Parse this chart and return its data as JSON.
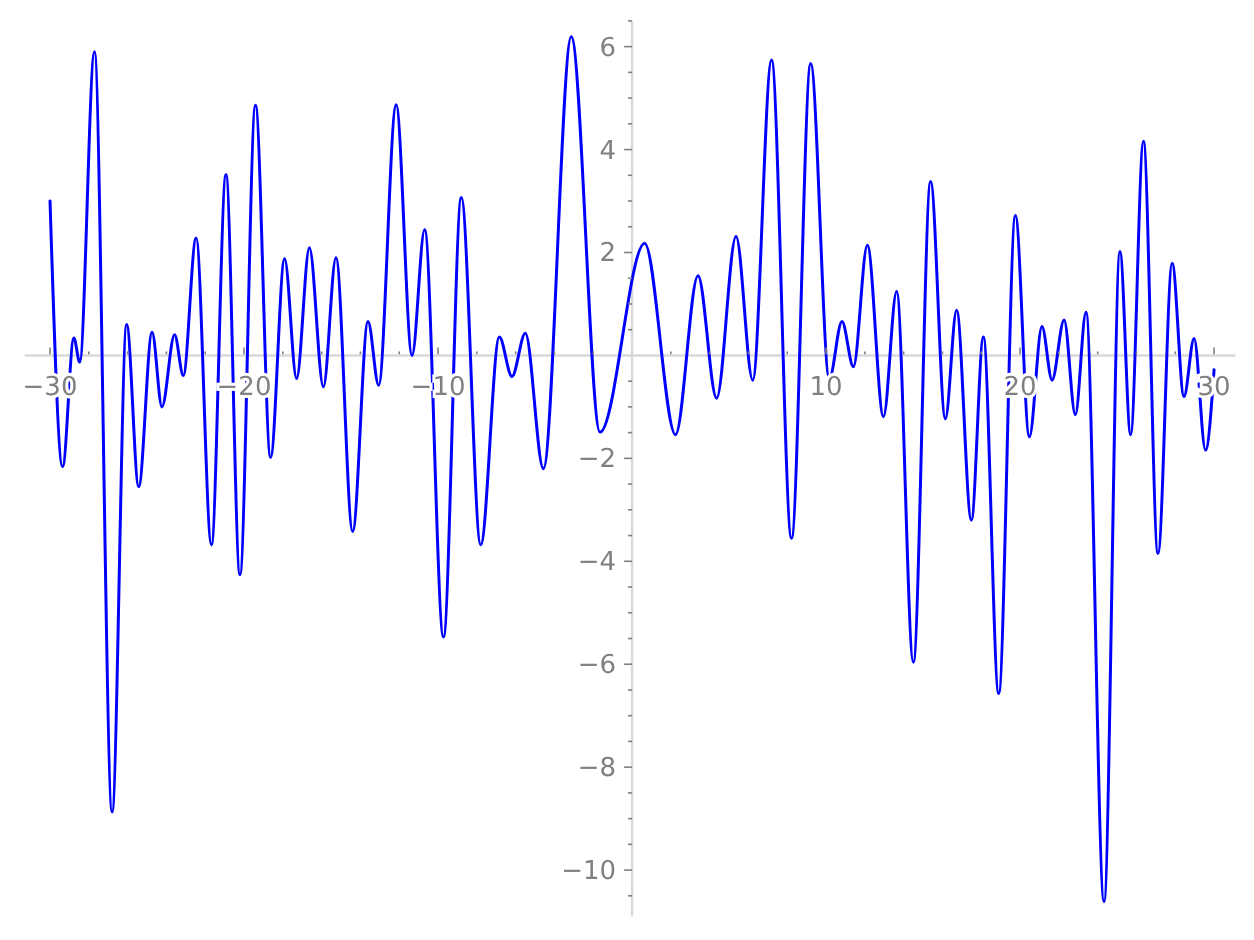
{
  "chart_data": {
    "type": "line",
    "color": "#0000ff",
    "xlim": [
      -31.3,
      31.1
    ],
    "ylim": [
      -10.9,
      6.5
    ],
    "x": [
      -30,
      -29.35,
      -28.77,
      -28.47,
      -27.71,
      -26.8,
      -26.05,
      -25.43,
      -24.74,
      -24.23,
      -23.58,
      -23.13,
      -22.47,
      -21.68,
      -20.93,
      -20.21,
      -19.41,
      -18.63,
      -17.91,
      -17.29,
      -16.63,
      -15.91,
      -15.26,
      -14.4,
      -13.61,
      -13.06,
      -12.16,
      -11.34,
      -10.69,
      -9.72,
      -8.8,
      -7.8,
      -6.84,
      -6.19,
      -5.5,
      -4.57,
      -3.13,
      -1.65,
      0.65,
      2.24,
      3.4,
      4.36,
      5.36,
      6.22,
      7.19,
      8.22,
      9.21,
      10.17,
      10.82,
      11.41,
      12.13,
      12.96,
      13.64,
      14.5,
      15.39,
      16.15,
      16.73,
      17.49,
      18.11,
      18.9,
      19.76,
      20.48,
      21.13,
      21.65,
      22.27,
      22.85,
      23.4,
      24.33,
      25.15,
      25.7,
      26.36,
      27.11,
      27.84,
      28.45,
      28.97,
      29.56,
      30
    ],
    "values": [
      3.0,
      -2.16,
      0.34,
      -0.13,
      5.9,
      -8.87,
      0.6,
      -2.55,
      0.45,
      -1.0,
      0.4,
      -0.39,
      2.28,
      -3.68,
      3.51,
      -4.26,
      4.86,
      -1.98,
      1.88,
      -0.45,
      2.09,
      -0.61,
      1.9,
      -3.42,
      0.66,
      -0.58,
      4.87,
      0.0,
      2.44,
      -5.47,
      3.07,
      -3.68,
      0.36,
      -0.41,
      0.43,
      -2.2,
      6.19,
      -1.49,
      2.18,
      -1.54,
      1.55,
      -0.83,
      2.31,
      -0.48,
      5.74,
      -3.55,
      5.67,
      -0.45,
      0.66,
      -0.22,
      2.14,
      -1.19,
      1.24,
      -5.96,
      3.38,
      -1.23,
      0.88,
      -3.2,
      0.36,
      -6.57,
      2.72,
      -1.58,
      0.56,
      -0.48,
      0.69,
      -1.15,
      0.84,
      -10.61,
      2.02,
      -1.54,
      4.16,
      -3.85,
      1.79,
      -0.8,
      0.33,
      -1.84,
      -0.28
    ],
    "xticks": [
      {
        "value": -30,
        "label": "−30"
      },
      {
        "value": -28,
        "label": null
      },
      {
        "value": -26,
        "label": null
      },
      {
        "value": -24,
        "label": null
      },
      {
        "value": -22,
        "label": null
      },
      {
        "value": -20,
        "label": "−20"
      },
      {
        "value": -18,
        "label": null
      },
      {
        "value": -16,
        "label": null
      },
      {
        "value": -14,
        "label": null
      },
      {
        "value": -12,
        "label": null
      },
      {
        "value": -10,
        "label": "−10"
      },
      {
        "value": -8,
        "label": null
      },
      {
        "value": -6,
        "label": null
      },
      {
        "value": -4,
        "label": null
      },
      {
        "value": -2,
        "label": null
      },
      {
        "value": 2,
        "label": null
      },
      {
        "value": 4,
        "label": null
      },
      {
        "value": 6,
        "label": null
      },
      {
        "value": 8,
        "label": null
      },
      10,
      {
        "value": 12,
        "label": null
      },
      {
        "value": 14,
        "label": null
      },
      {
        "value": 16,
        "label": null
      },
      {
        "value": 18,
        "label": null
      },
      20,
      {
        "value": 22,
        "label": null
      },
      {
        "value": 24,
        "label": null
      },
      {
        "value": 26,
        "label": null
      },
      {
        "value": 28,
        "label": null
      },
      30
    ],
    "yticks": [
      {
        "value": -10.5,
        "label": null
      },
      {
        "value": -10,
        "label": "−10"
      },
      {
        "value": -9.5,
        "label": null
      },
      {
        "value": -9,
        "label": null
      },
      {
        "value": -8.5,
        "label": null
      },
      {
        "value": -8,
        "label": "−8"
      },
      {
        "value": -7.5,
        "label": null
      },
      {
        "value": -7,
        "label": null
      },
      {
        "value": -6.5,
        "label": null
      },
      {
        "value": -6,
        "label": "−6"
      },
      {
        "value": -5.5,
        "label": null
      },
      {
        "value": -5,
        "label": null
      },
      {
        "value": -4.5,
        "label": null
      },
      {
        "value": -4,
        "label": "−4"
      },
      {
        "value": -3.5,
        "label": null
      },
      {
        "value": -3,
        "label": null
      },
      {
        "value": -2.5,
        "label": null
      },
      {
        "value": -2,
        "label": "−2"
      },
      {
        "value": -1.5,
        "label": null
      },
      {
        "value": -1,
        "label": null
      },
      {
        "value": -0.5,
        "label": null
      },
      {
        "value": 0.5,
        "label": null
      },
      {
        "value": 1,
        "label": null
      },
      {
        "value": 1.5,
        "label": null
      },
      2,
      {
        "value": 2.5,
        "label": null
      },
      {
        "value": 3,
        "label": null
      },
      {
        "value": 3.5,
        "label": null
      },
      4,
      {
        "value": 4.5,
        "label": null
      },
      {
        "value": 5,
        "label": null
      },
      {
        "value": 5.5,
        "label": null
      },
      6,
      {
        "value": 6.5,
        "label": null
      }
    ]
  }
}
